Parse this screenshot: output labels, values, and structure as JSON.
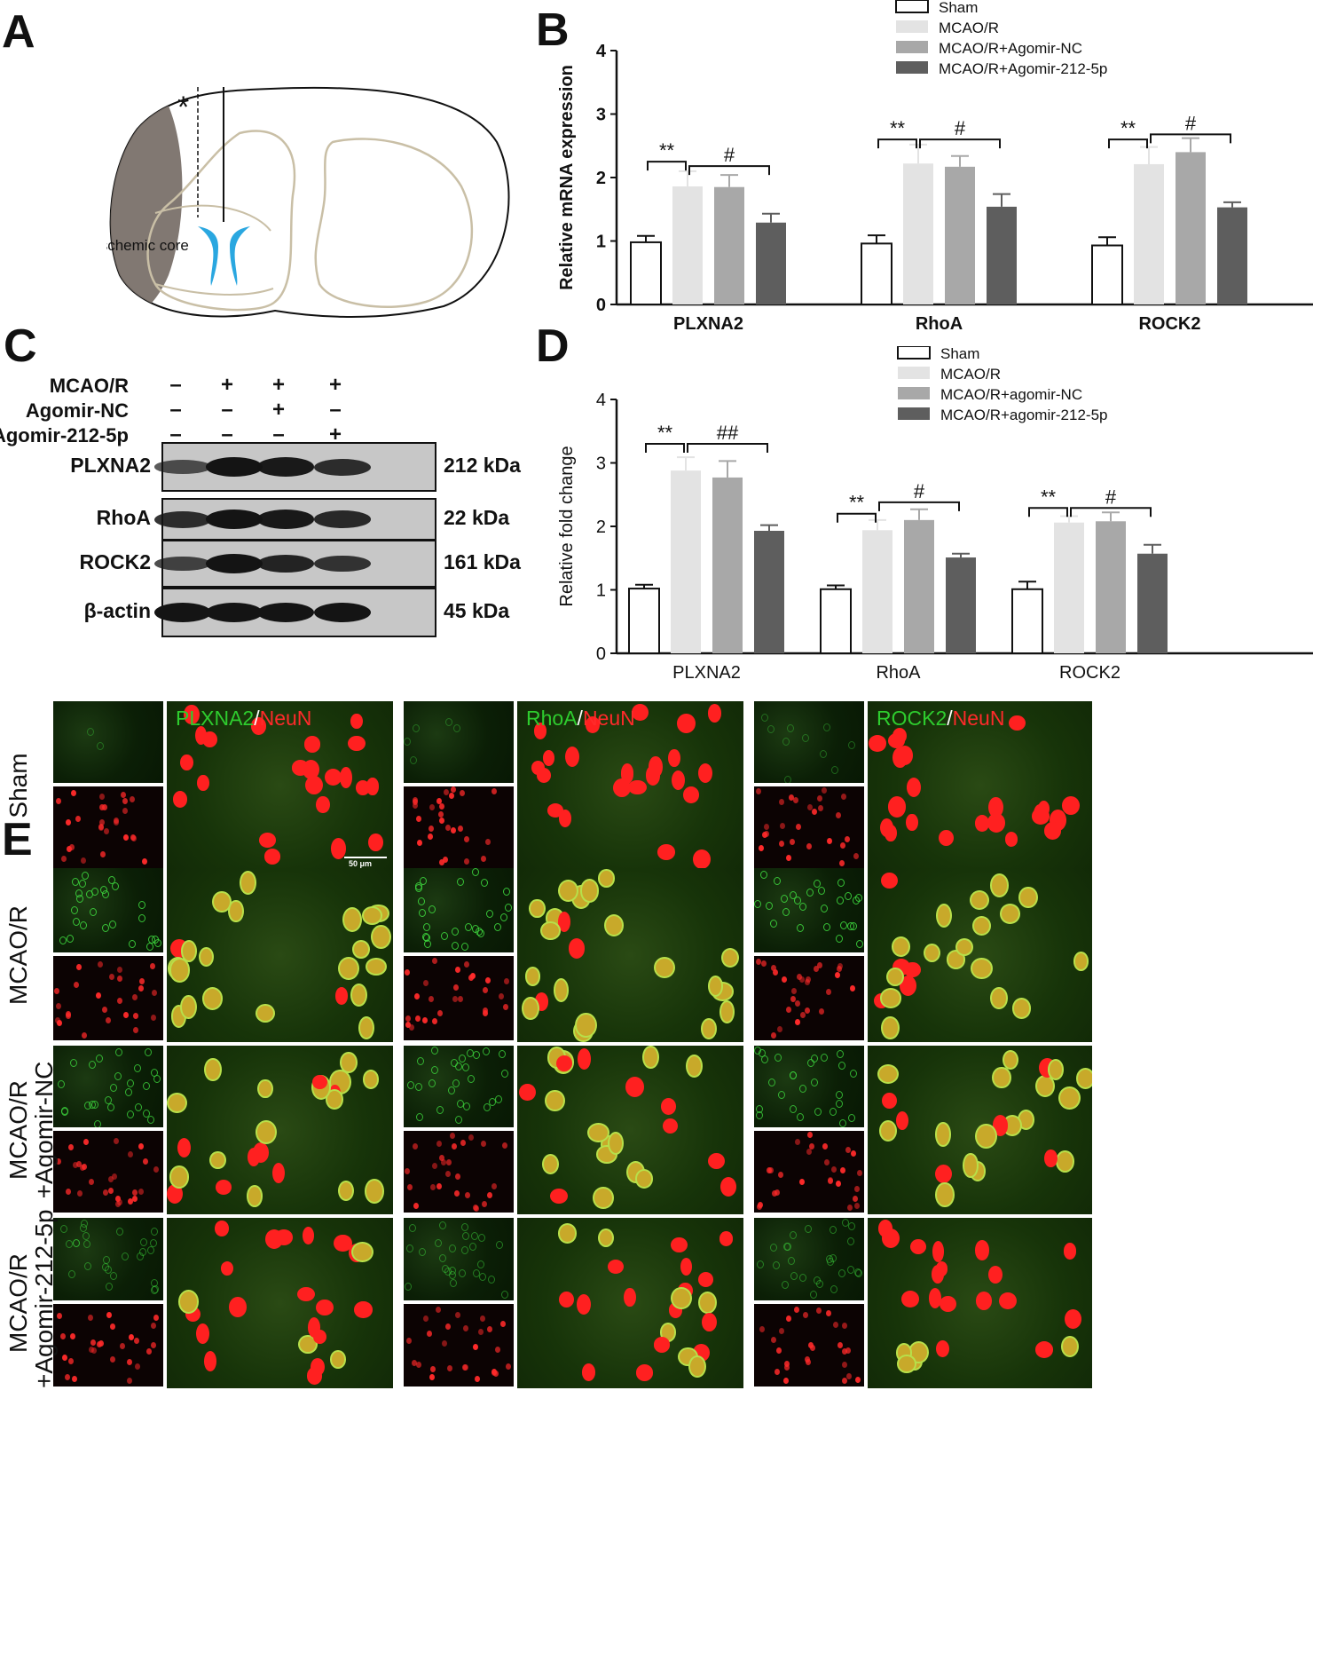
{
  "panel_letters": {
    "a": "A",
    "b": "B",
    "c": "C",
    "d": "D",
    "e": "E"
  },
  "panel_a": {
    "core_label": "Ischemic core",
    "asterisk": "*",
    "colors": {
      "core": "#7a716a",
      "ventricle": "#2aa7e0",
      "outline": "#111111",
      "gray_matter": "#c9bfa6"
    }
  },
  "chart_data": [
    {
      "panel": "B",
      "type": "bar",
      "categories": [
        "PLXNA2",
        "RhoA",
        "ROCK2"
      ],
      "ylabel": "Relative mRNA expression",
      "xlabel": "",
      "ylim": [
        0,
        4
      ],
      "yticks": [
        "0",
        "1",
        "2",
        "3",
        "4"
      ],
      "bold_labels": true,
      "legend_position": "top-right",
      "series": [
        {
          "name": "Sham",
          "values": [
            0.98,
            0.96,
            0.93
          ],
          "errors": [
            0.1,
            0.13,
            0.13
          ],
          "color": "#ffffff"
        },
        {
          "name": "MCAO/R",
          "values": [
            1.86,
            2.22,
            2.21
          ],
          "errors": [
            0.24,
            0.3,
            0.27
          ],
          "color": "#e3e3e3"
        },
        {
          "name": "MCAO/R+Agomir-NC",
          "values": [
            1.85,
            2.17,
            2.4
          ],
          "errors": [
            0.19,
            0.17,
            0.22
          ],
          "color": "#a8a8a8"
        },
        {
          "name": "MCAO/R+Agomir-212-5p",
          "values": [
            1.29,
            1.54,
            1.53
          ],
          "errors": [
            0.14,
            0.2,
            0.08
          ],
          "color": "#5e5e5e"
        }
      ],
      "significance": [
        {
          "category": 0,
          "from": 0,
          "to": 1,
          "label": "**",
          "y": 2.25
        },
        {
          "category": 0,
          "from": 1,
          "to": 3,
          "label": "#",
          "y": 2.18
        },
        {
          "category": 1,
          "from": 0,
          "to": 1,
          "label": "**",
          "y": 2.6
        },
        {
          "category": 1,
          "from": 1,
          "to": 3,
          "label": "#",
          "y": 2.6
        },
        {
          "category": 2,
          "from": 0,
          "to": 1,
          "label": "**",
          "y": 2.6
        },
        {
          "category": 2,
          "from": 1,
          "to": 3,
          "label": "#",
          "y": 2.68
        }
      ]
    },
    {
      "panel": "D",
      "type": "bar",
      "categories": [
        "PLXNA2",
        "RhoA",
        "ROCK2"
      ],
      "ylabel": "Relative fold change",
      "xlabel": "",
      "ylim": [
        0,
        4
      ],
      "yticks": [
        "0",
        "1",
        "2",
        "3",
        "4"
      ],
      "bold_labels": false,
      "legend_position": "top-right",
      "series": [
        {
          "name": "Sham",
          "values": [
            1.02,
            1.01,
            1.01
          ],
          "errors": [
            0.06,
            0.06,
            0.12
          ],
          "color": "#ffffff"
        },
        {
          "name": "MCAO/R",
          "values": [
            2.88,
            1.94,
            2.06
          ],
          "errors": [
            0.21,
            0.16,
            0.1
          ],
          "color": "#e3e3e3"
        },
        {
          "name": "MCAO/R+agomir-NC",
          "values": [
            2.77,
            2.1,
            2.08
          ],
          "errors": [
            0.26,
            0.17,
            0.14
          ],
          "color": "#a8a8a8"
        },
        {
          "name": "MCAO/R+agomir-212-5p",
          "values": [
            1.93,
            1.51,
            1.57
          ],
          "errors": [
            0.09,
            0.06,
            0.14
          ],
          "color": "#5e5e5e"
        }
      ],
      "significance": [
        {
          "category": 0,
          "from": 0,
          "to": 1,
          "label": "**",
          "y": 3.3
        },
        {
          "category": 0,
          "from": 1,
          "to": 3,
          "label": "##",
          "y": 3.3
        },
        {
          "category": 1,
          "from": 0,
          "to": 1,
          "label": "**",
          "y": 2.2
        },
        {
          "category": 1,
          "from": 1,
          "to": 3,
          "label": "#",
          "y": 2.38
        },
        {
          "category": 2,
          "from": 0,
          "to": 1,
          "label": "**",
          "y": 2.29
        },
        {
          "category": 2,
          "from": 1,
          "to": 3,
          "label": "#",
          "y": 2.29
        }
      ]
    }
  ],
  "western_blot": {
    "conditions": [
      {
        "label": "MCAO/R",
        "signs": [
          "–",
          "+",
          "+",
          "+"
        ]
      },
      {
        "label": "Agomir-NC",
        "signs": [
          "–",
          "–",
          "+",
          "–"
        ]
      },
      {
        "label": "Agomir-212-5p",
        "signs": [
          "–",
          "–",
          "–",
          "+"
        ]
      }
    ],
    "rows": [
      {
        "label": "PLXNA2",
        "kda": "212 kDa",
        "intensity": [
          0.45,
          1.0,
          0.95,
          0.75
        ]
      },
      {
        "label": "RhoA",
        "kda": "22 kDa",
        "intensity": [
          0.75,
          1.0,
          0.95,
          0.8
        ]
      },
      {
        "label": "ROCK2",
        "kda": "161 kDa",
        "intensity": [
          0.55,
          1.0,
          0.85,
          0.7
        ]
      },
      {
        "label": "β-actin",
        "kda": "45 kDa",
        "intensity": [
          1.0,
          1.0,
          1.0,
          1.0
        ]
      }
    ]
  },
  "panel_e": {
    "columns": [
      {
        "marker": "PLXNA2",
        "sep": "/",
        "counter": "NeuN"
      },
      {
        "marker": "RhoA",
        "sep": "/",
        "counter": "NeuN"
      },
      {
        "marker": "ROCK2",
        "sep": "/",
        "counter": "NeuN"
      }
    ],
    "rows": [
      {
        "line1": "Sham",
        "line2": "",
        "coloc": 0.0
      },
      {
        "line1": "MCAO/R",
        "line2": "",
        "coloc": 0.85
      },
      {
        "line1": "MCAO/R",
        "line2": "+Agomir-NC",
        "coloc": 0.7
      },
      {
        "line1": "MCAO/R",
        "line2": "+Agomir-212-5p",
        "coloc": 0.2
      }
    ],
    "scale_bar": "50 μm",
    "colors": {
      "marker_text": "#2ecc2e",
      "counter_text": "#ff2a2a",
      "neun": "#ff2020",
      "merge": "#d7b414"
    }
  }
}
